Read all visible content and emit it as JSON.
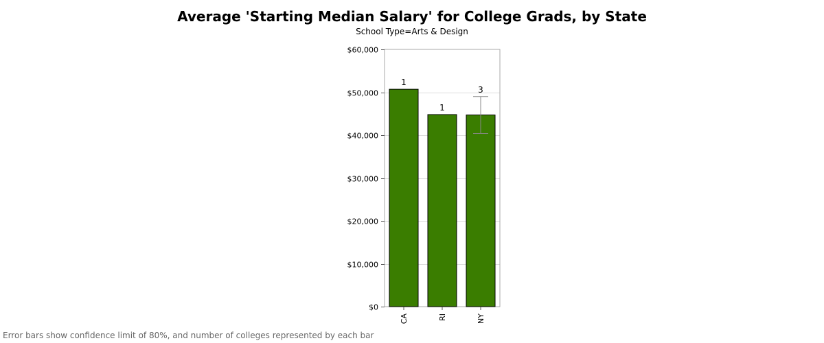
{
  "chart_data": {
    "type": "bar",
    "title": "Average 'Starting Median Salary' for College Grads, by State",
    "subtitle": "School Type=Arts & Design",
    "xlabel": "",
    "ylabel": "",
    "categories": [
      "CA",
      "RI",
      "NY"
    ],
    "values": [
      50700,
      44800,
      44700
    ],
    "error_low": [
      50700,
      44800,
      40400
    ],
    "error_high": [
      50700,
      44800,
      49000
    ],
    "counts": [
      "1",
      "1",
      "3"
    ],
    "ylim": [
      0,
      60000
    ],
    "yticks": [
      0,
      10000,
      20000,
      30000,
      40000,
      50000,
      60000
    ],
    "ytick_labels": [
      "$0",
      "$10,000",
      "$20,000",
      "$30,000",
      "$40,000",
      "$50,000",
      "$60,000"
    ],
    "grid": true,
    "legend": "none",
    "bar_color": "#3a7d00",
    "error_bar_color": "#888888",
    "footnote": "Error bars show confidence limit of 80%, and number of colleges represented by each bar"
  }
}
